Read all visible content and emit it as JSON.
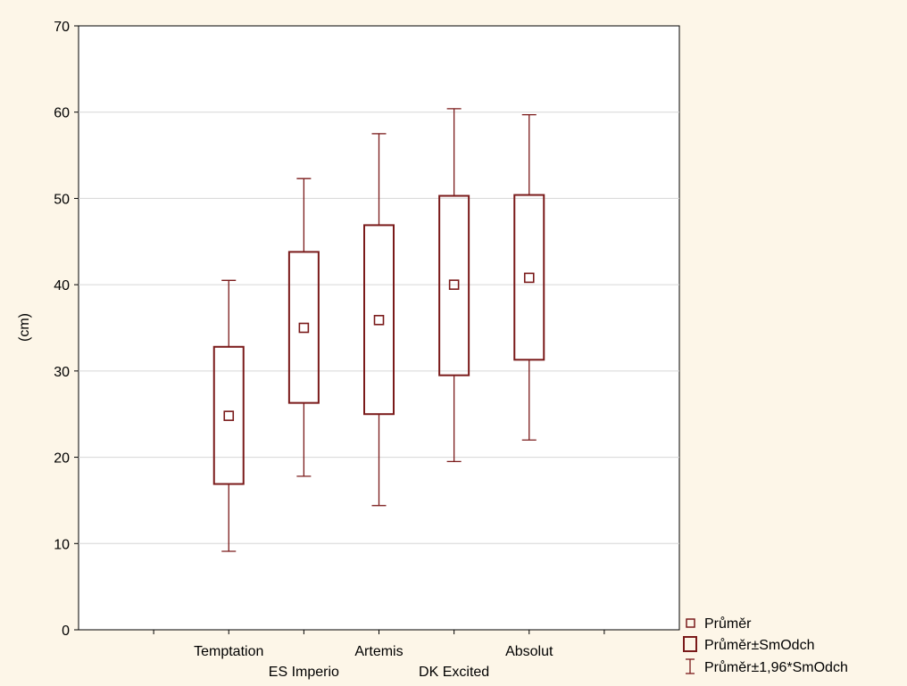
{
  "chart_data": {
    "type": "boxplot",
    "title": "",
    "xlabel": "",
    "ylabel": "(cm)",
    "ylim": [
      0,
      70
    ],
    "yticks": [
      0,
      10,
      20,
      30,
      40,
      50,
      60,
      70
    ],
    "grid": true,
    "categories": [
      "Temptation",
      "ES Imperio",
      "Artemis",
      "DK Excited",
      "Absolut"
    ],
    "series": [
      {
        "category": "Temptation",
        "mean": 24.8,
        "sd_low": 16.9,
        "sd_high": 32.8,
        "ci_low": 9.1,
        "ci_high": 40.5
      },
      {
        "category": "ES Imperio",
        "mean": 35.0,
        "sd_low": 26.3,
        "sd_high": 43.8,
        "ci_low": 17.8,
        "ci_high": 52.3
      },
      {
        "category": "Artemis",
        "mean": 35.9,
        "sd_low": 25.0,
        "sd_high": 46.9,
        "ci_low": 14.4,
        "ci_high": 57.5
      },
      {
        "category": "DK Excited",
        "mean": 40.0,
        "sd_low": 29.5,
        "sd_high": 50.3,
        "ci_low": 19.5,
        "ci_high": 60.4
      },
      {
        "category": "Absolut",
        "mean": 40.8,
        "sd_low": 31.3,
        "sd_high": 50.4,
        "ci_low": 22.0,
        "ci_high": 59.7
      }
    ],
    "legend": {
      "position": "bottom-right",
      "entries": [
        {
          "symbol": "small-square",
          "label": "Průměr"
        },
        {
          "symbol": "box",
          "label": "Průměr±SmOdch"
        },
        {
          "symbol": "whisker",
          "label": "Průměr±1,96*SmOdch"
        }
      ]
    },
    "colors": {
      "series": "#7a1a1a",
      "grid": "#d6d6d6",
      "plot_bg": "#ffffff",
      "page_bg": "#fdf6e8"
    }
  }
}
